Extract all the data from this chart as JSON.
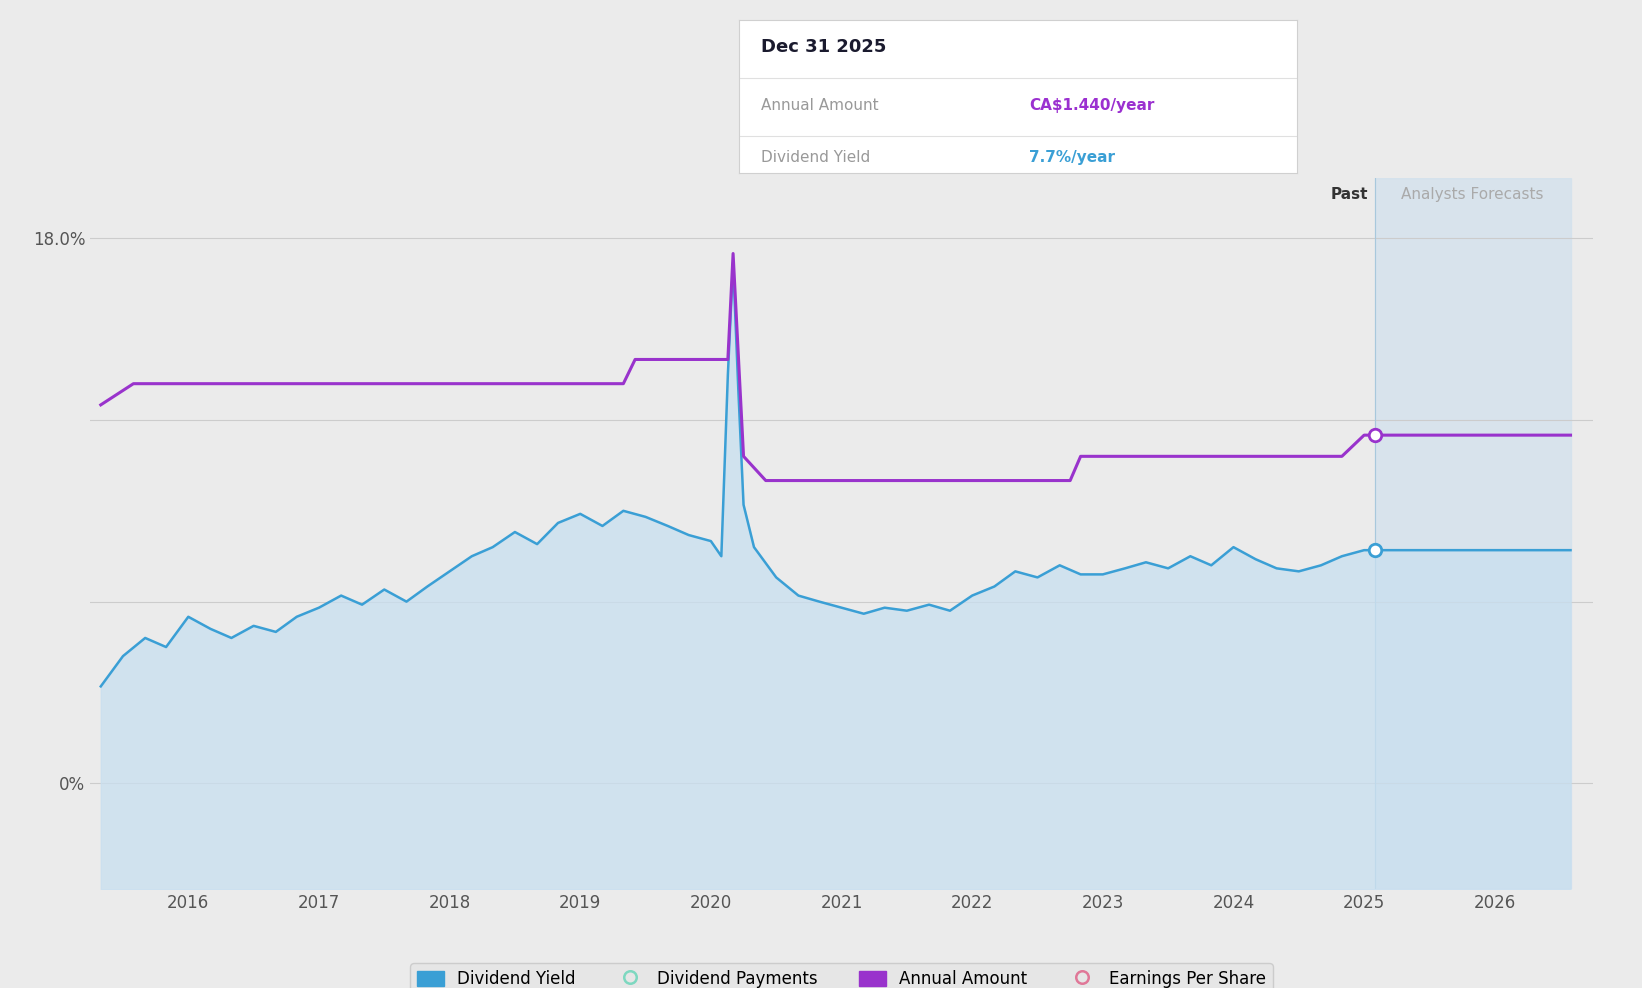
{
  "bg_color": "#ebebeb",
  "plot_bg_color": "#ebebeb",
  "forecast_start_x": 2025.08,
  "forecast_end_x": 2026.58,
  "forecast_bg_color": "#cfe0ed",
  "past_label": "Past",
  "forecast_label": "Analysts Forecasts",
  "tooltip_date": "Dec 31 2025",
  "tooltip_annual_label": "Annual Amount",
  "tooltip_annual_value": "CA$1.440/year",
  "tooltip_yield_label": "Dividend Yield",
  "tooltip_yield_value": "7.7%/year",
  "tooltip_annual_color": "#9b30d0",
  "tooltip_yield_color": "#3a9fd5",
  "dividend_yield_color": "#3a9fd5",
  "dividend_yield_fill": "#c8dff0",
  "annual_amount_color": "#9933cc",
  "dot_color_yield": "#3a9fd5",
  "dot_color_annual": "#9933cc",
  "legend_items": [
    "Dividend Yield",
    "Dividend Payments",
    "Annual Amount",
    "Earnings Per Share"
  ],
  "legend_colors": [
    "#3a9fd5",
    "#7dd8c0",
    "#9933cc",
    "#e07898"
  ],
  "legend_filled": [
    true,
    false,
    true,
    false
  ],
  "xlim": [
    2015.25,
    2026.75
  ],
  "ylim": [
    -3.5,
    20.0
  ],
  "x_ticks": [
    2016.0,
    2017.0,
    2018.0,
    2019.0,
    2020.0,
    2021.0,
    2022.0,
    2023.0,
    2024.0,
    2025.0,
    2026.0
  ],
  "x_labels": [
    "2016",
    "2017",
    "2018",
    "2019",
    "2020",
    "2021",
    "2022",
    "2023",
    "2024",
    "2025",
    "2026"
  ],
  "y_label_18": "18.0%",
  "y_label_0": "0%",
  "grid_lines": [
    0.0,
    6.0,
    12.0,
    18.0
  ],
  "dividend_yield_x": [
    2015.33,
    2015.5,
    2015.67,
    2015.83,
    2016.0,
    2016.17,
    2016.33,
    2016.5,
    2016.67,
    2016.83,
    2017.0,
    2017.17,
    2017.33,
    2017.5,
    2017.67,
    2017.83,
    2018.0,
    2018.17,
    2018.33,
    2018.5,
    2018.67,
    2018.83,
    2019.0,
    2019.17,
    2019.33,
    2019.5,
    2019.67,
    2019.83,
    2020.0,
    2020.08,
    2020.13,
    2020.17,
    2020.21,
    2020.25,
    2020.33,
    2020.5,
    2020.67,
    2020.83,
    2021.0,
    2021.17,
    2021.33,
    2021.5,
    2021.67,
    2021.83,
    2022.0,
    2022.17,
    2022.33,
    2022.5,
    2022.67,
    2022.83,
    2023.0,
    2023.17,
    2023.33,
    2023.5,
    2023.67,
    2023.83,
    2024.0,
    2024.17,
    2024.33,
    2024.5,
    2024.67,
    2024.83,
    2025.0,
    2025.08
  ],
  "dividend_yield_y": [
    3.2,
    4.2,
    4.8,
    4.5,
    5.5,
    5.1,
    4.8,
    5.2,
    5.0,
    5.5,
    5.8,
    6.2,
    5.9,
    6.4,
    6.0,
    6.5,
    7.0,
    7.5,
    7.8,
    8.3,
    7.9,
    8.6,
    8.9,
    8.5,
    9.0,
    8.8,
    8.5,
    8.2,
    8.0,
    7.5,
    13.5,
    17.2,
    13.0,
    9.2,
    7.8,
    6.8,
    6.2,
    6.0,
    5.8,
    5.6,
    5.8,
    5.7,
    5.9,
    5.7,
    6.2,
    6.5,
    7.0,
    6.8,
    7.2,
    6.9,
    6.9,
    7.1,
    7.3,
    7.1,
    7.5,
    7.2,
    7.8,
    7.4,
    7.1,
    7.0,
    7.2,
    7.5,
    7.7,
    7.7
  ],
  "annual_amount_x": [
    2015.33,
    2015.58,
    2015.58,
    2019.33,
    2019.33,
    2019.42,
    2019.42,
    2020.0,
    2020.0,
    2020.13,
    2020.13,
    2020.17,
    2020.17,
    2020.25,
    2020.25,
    2020.42,
    2020.42,
    2020.58,
    2020.58,
    2021.5,
    2021.5,
    2022.0,
    2022.0,
    2022.75,
    2022.75,
    2022.83,
    2022.83,
    2024.83,
    2024.83,
    2025.0,
    2025.0,
    2025.08
  ],
  "annual_amount_y": [
    12.5,
    13.2,
    13.2,
    13.2,
    13.2,
    14.0,
    14.0,
    14.0,
    14.0,
    14.0,
    14.0,
    17.5,
    17.5,
    10.8,
    10.8,
    10.0,
    10.0,
    10.0,
    10.0,
    10.0,
    10.0,
    10.0,
    10.0,
    10.0,
    10.0,
    10.8,
    10.8,
    10.8,
    10.8,
    11.5,
    11.5,
    11.5
  ],
  "dot_yield_x": 2025.08,
  "dot_yield_y": 7.7,
  "dot_annual_x": 2025.08,
  "dot_annual_y": 11.5,
  "forecast_yield_y": 7.7,
  "forecast_annual_y": 11.5
}
